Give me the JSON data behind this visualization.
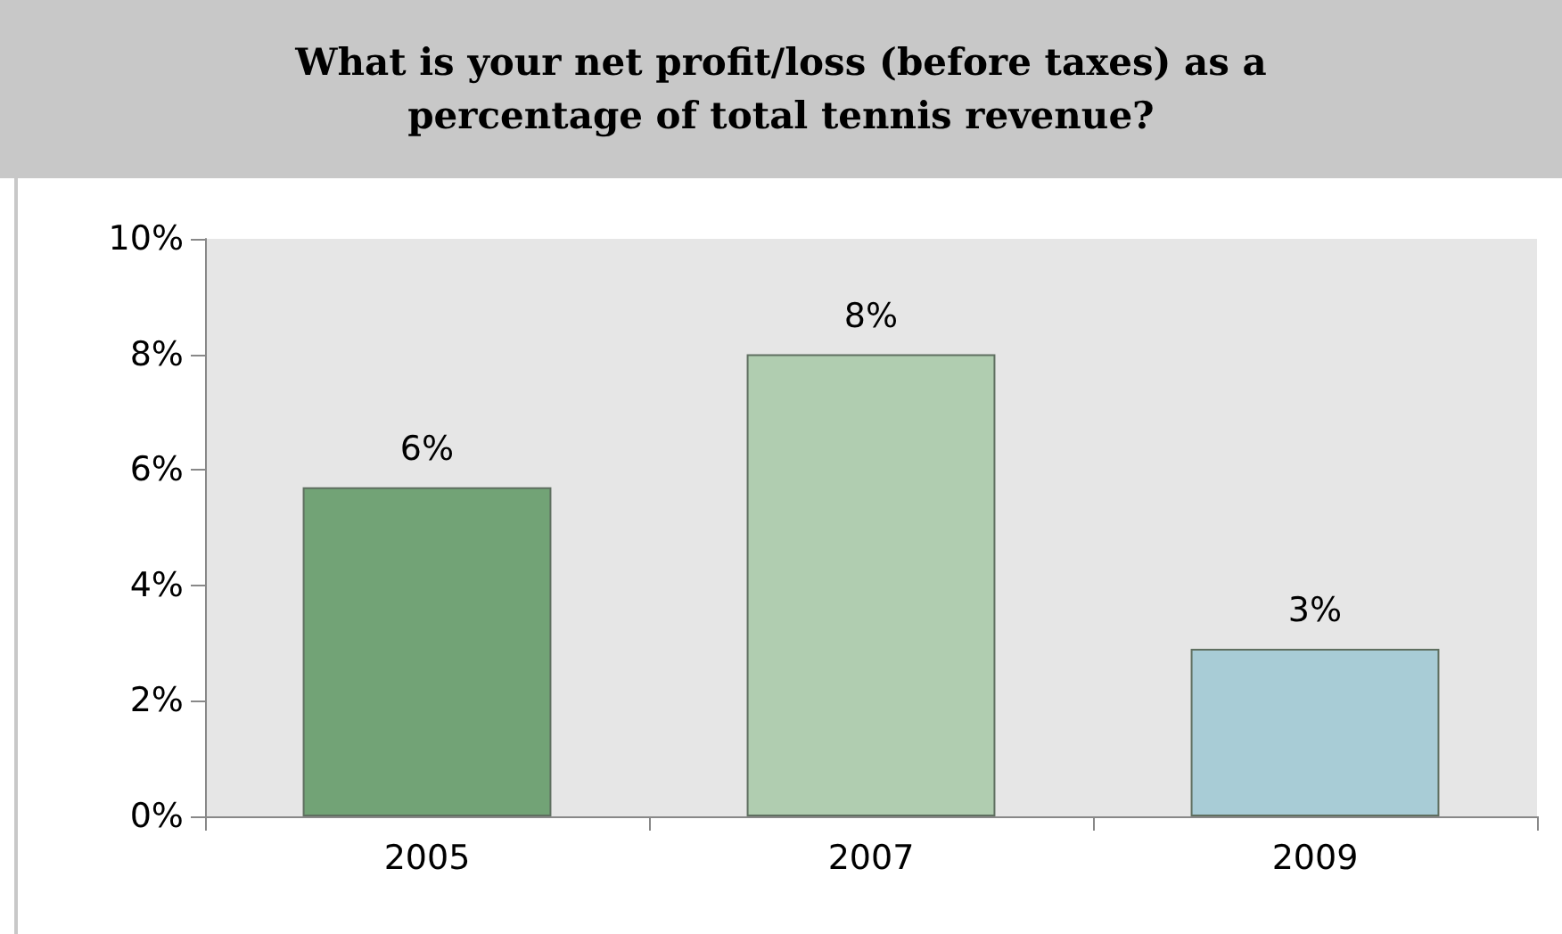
{
  "chart_data": {
    "type": "bar",
    "title": "What is your net profit/loss (before taxes) as a percentage of total tennis revenue?",
    "categories": [
      "2005",
      "2007",
      "2009"
    ],
    "values": [
      5.7,
      8.0,
      2.9
    ],
    "colors": [
      "#72a376",
      "#b0cdb0",
      "#a8ccd6"
    ],
    "value_labels": [
      "6%",
      "8%",
      "3%"
    ],
    "ylim": [
      0,
      10
    ],
    "yticks": [
      {
        "value": 0,
        "label": "0%"
      },
      {
        "value": 2,
        "label": "2%"
      },
      {
        "value": 4,
        "label": "4%"
      },
      {
        "value": 6,
        "label": "6%"
      },
      {
        "value": 8,
        "label": "8%"
      },
      {
        "value": 10,
        "label": "10%"
      }
    ],
    "grid": false
  }
}
